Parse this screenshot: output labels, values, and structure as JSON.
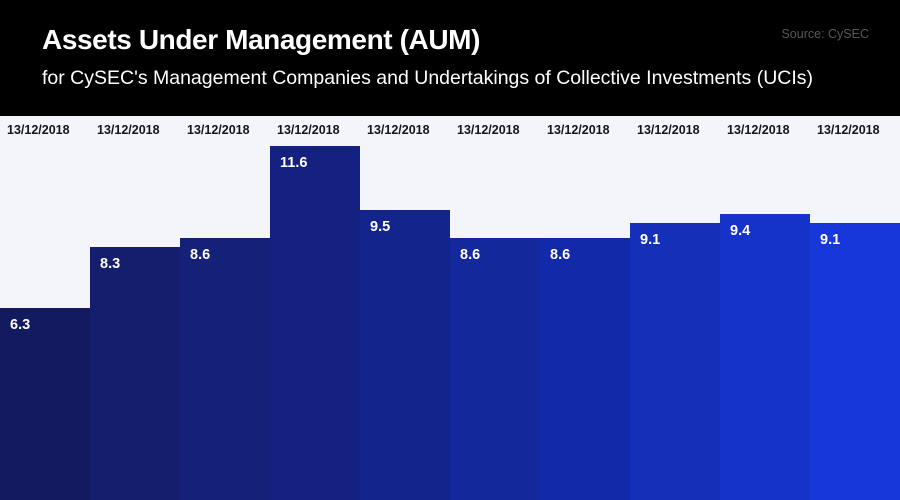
{
  "header": {
    "source_label": "Source: CySEC"
  },
  "chart_data": {
    "type": "bar",
    "title": "Assets Under Management (AUM)",
    "subtitle": "for CySEC's Management Companies and Undertakings of Collective Investments (UCIs)",
    "source": "Source: CySEC",
    "categories": [
      "13/12/2018",
      "13/12/2018",
      "13/12/2018",
      "13/12/2018",
      "13/12/2018",
      "13/12/2018",
      "13/12/2018",
      "13/12/2018",
      "13/12/2018",
      "13/12/2018"
    ],
    "values": [
      6.3,
      8.3,
      8.6,
      11.6,
      9.5,
      8.6,
      8.6,
      9.1,
      9.4,
      9.1
    ],
    "xlabel": "",
    "ylabel": "",
    "ylim": [
      0,
      12.6
    ],
    "grid": false,
    "legend": false,
    "value_labels_inside_bars": true,
    "bar_colors": [
      "#131a5f",
      "#151e6c",
      "#152078",
      "#142181",
      "#14248d",
      "#13289b",
      "#122aa8",
      "#152fb9",
      "#1633c9",
      "#1737db"
    ],
    "plot_background": "#f4f5fa",
    "header_background": "#000000",
    "title_color": "#ffffff",
    "category_label_color": "#15151e",
    "value_label_color": "#ffffff",
    "source_color": "#58585a"
  }
}
